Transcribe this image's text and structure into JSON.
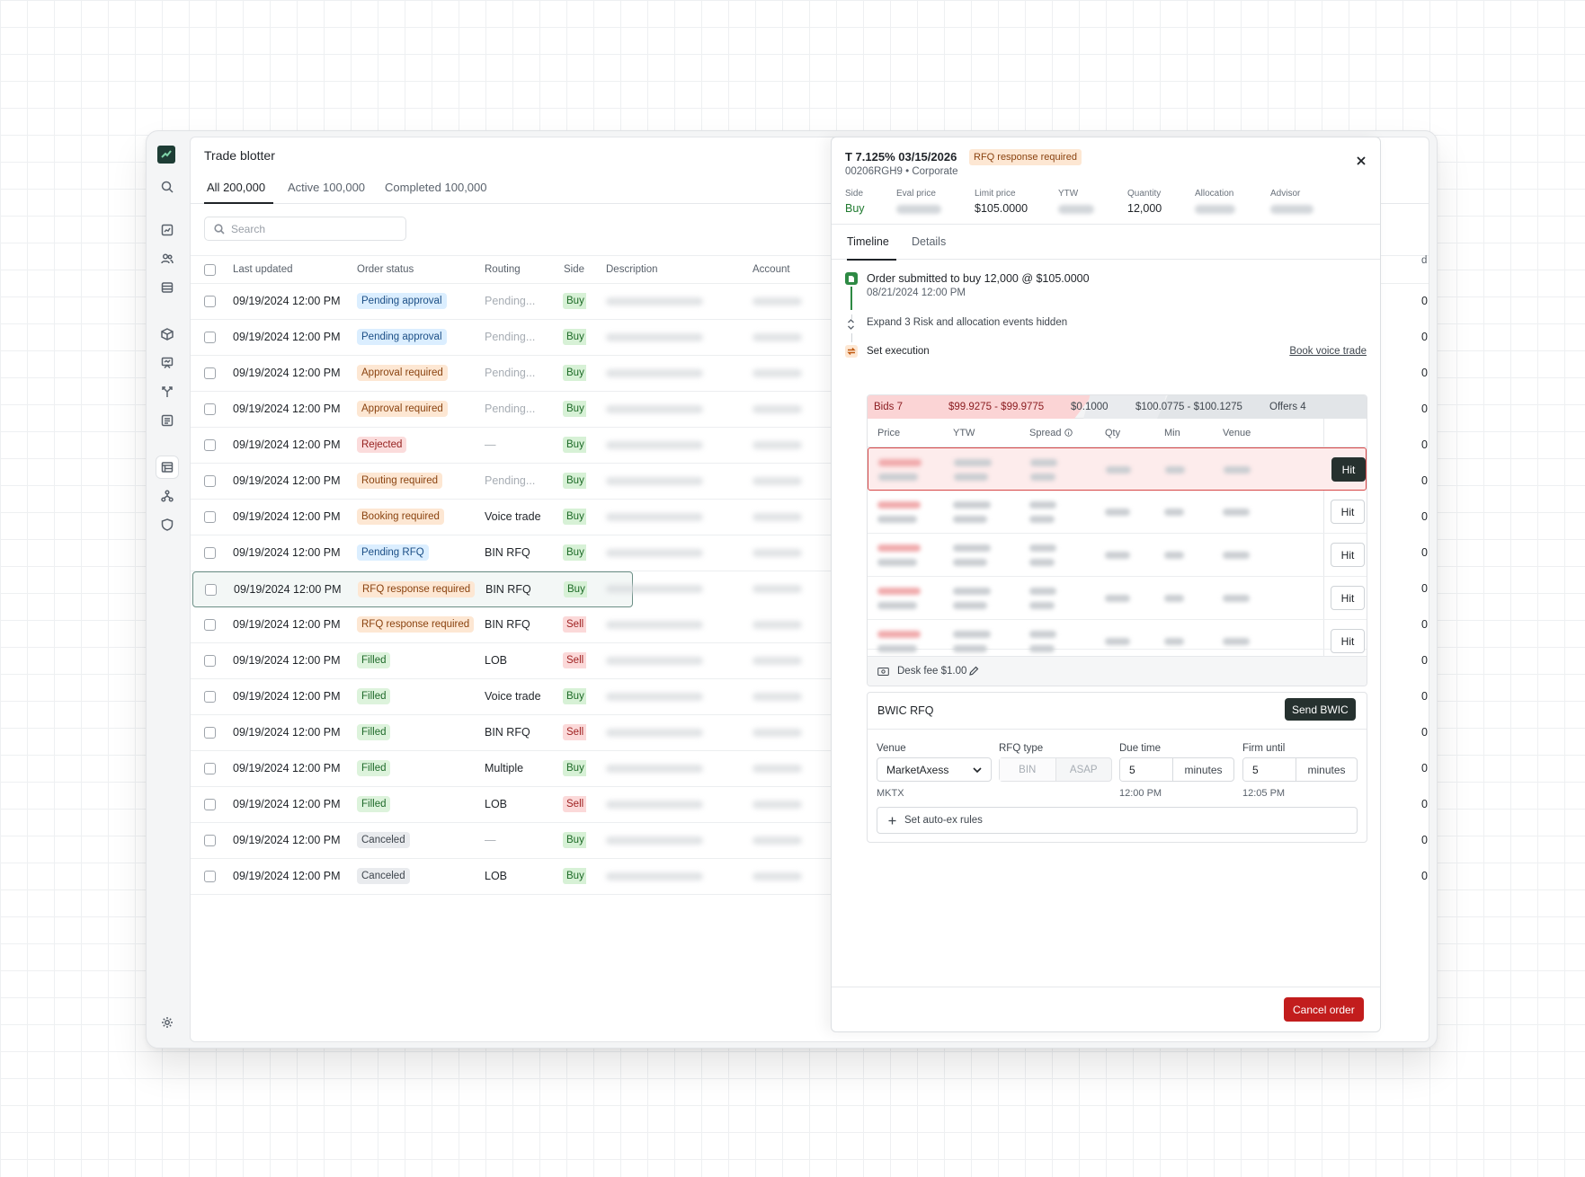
{
  "app": {
    "title": "Trade blotter"
  },
  "tabs": [
    {
      "label": "All",
      "count": "200,000"
    },
    {
      "label": "Active",
      "count": "100,000"
    },
    {
      "label": "Completed",
      "count": "100,000"
    }
  ],
  "search": {
    "placeholder": "Search",
    "value": ""
  },
  "columns": [
    "Last updated",
    "Order status",
    "Routing",
    "Side",
    "Description",
    "Account"
  ],
  "edge_column_fragment": "d",
  "edge_cell_fragment": "0",
  "rows": [
    {
      "updated": "09/19/2024 12:00 PM",
      "status": "Pending approval",
      "status_color": "blue",
      "routing": "Pending...",
      "routing_muted": true,
      "side": "Buy"
    },
    {
      "updated": "09/19/2024 12:00 PM",
      "status": "Pending approval",
      "status_color": "blue",
      "routing": "Pending...",
      "routing_muted": true,
      "side": "Buy"
    },
    {
      "updated": "09/19/2024 12:00 PM",
      "status": "Approval required",
      "status_color": "orange",
      "routing": "Pending...",
      "routing_muted": true,
      "side": "Buy"
    },
    {
      "updated": "09/19/2024 12:00 PM",
      "status": "Approval required",
      "status_color": "orange",
      "routing": "Pending...",
      "routing_muted": true,
      "side": "Buy"
    },
    {
      "updated": "09/19/2024 12:00 PM",
      "status": "Rejected",
      "status_color": "red",
      "routing": "—",
      "routing_muted": true,
      "side": "Buy"
    },
    {
      "updated": "09/19/2024 12:00 PM",
      "status": "Routing required",
      "status_color": "orange",
      "routing": "Pending...",
      "routing_muted": true,
      "side": "Buy"
    },
    {
      "updated": "09/19/2024 12:00 PM",
      "status": "Booking required",
      "status_color": "orange",
      "routing": "Voice trade",
      "routing_muted": false,
      "side": "Buy"
    },
    {
      "updated": "09/19/2024 12:00 PM",
      "status": "Pending RFQ",
      "status_color": "blue",
      "routing": "BIN RFQ",
      "routing_muted": false,
      "side": "Buy"
    },
    {
      "updated": "09/19/2024 12:00 PM",
      "status": "RFQ response required",
      "status_color": "orange",
      "routing": "BIN RFQ",
      "routing_muted": false,
      "side": "Buy",
      "selected": true
    },
    {
      "updated": "09/19/2024 12:00 PM",
      "status": "RFQ response required",
      "status_color": "orange",
      "routing": "BIN RFQ",
      "routing_muted": false,
      "side": "Sell"
    },
    {
      "updated": "09/19/2024 12:00 PM",
      "status": "Filled",
      "status_color": "green",
      "routing": "LOB",
      "routing_muted": false,
      "side": "Sell"
    },
    {
      "updated": "09/19/2024 12:00 PM",
      "status": "Filled",
      "status_color": "green",
      "routing": "Voice trade",
      "routing_muted": false,
      "side": "Buy"
    },
    {
      "updated": "09/19/2024 12:00 PM",
      "status": "Filled",
      "status_color": "green",
      "routing": "BIN RFQ",
      "routing_muted": false,
      "side": "Sell"
    },
    {
      "updated": "09/19/2024 12:00 PM",
      "status": "Filled",
      "status_color": "green",
      "routing": "Multiple",
      "routing_muted": false,
      "side": "Buy"
    },
    {
      "updated": "09/19/2024 12:00 PM",
      "status": "Filled",
      "status_color": "green",
      "routing": "LOB",
      "routing_muted": false,
      "side": "Sell"
    },
    {
      "updated": "09/19/2024 12:00 PM",
      "status": "Canceled",
      "status_color": "gray",
      "routing": "—",
      "routing_muted": true,
      "side": "Buy"
    },
    {
      "updated": "09/19/2024 12:00 PM",
      "status": "Canceled",
      "status_color": "gray",
      "routing": "LOB",
      "routing_muted": false,
      "side": "Buy"
    }
  ],
  "detail": {
    "title": "T 7.125% 03/15/2026",
    "status": "RFQ response required",
    "subtitle": "00206RGH9 • Corporate",
    "meta": {
      "side_label": "Side",
      "side_value": "Buy",
      "eval_label": "Eval price",
      "limit_label": "Limit price",
      "limit_value": "$105.0000",
      "ytw_label": "YTW",
      "qty_label": "Quantity",
      "qty_value": "12,000",
      "alloc_label": "Allocation",
      "advisor_label": "Advisor"
    },
    "tabs": [
      "Timeline",
      "Details"
    ],
    "timeline": {
      "submitted": "Order submitted to buy 12,000 @ $105.0000",
      "submitted_time": "08/21/2024 12:00 PM",
      "expand": "Expand 3 Risk and allocation events hidden",
      "set_execution": "Set execution",
      "book_voice": "Book voice trade"
    },
    "orderbook": {
      "bids_label": "Bids 7",
      "bids_range": "$99.9275 - $99.9775",
      "spread": "$0.1000",
      "offers_range": "$100.0775 - $100.1275",
      "offers_label": "Offers 4",
      "columns": [
        "Price",
        "YTW",
        "Spread",
        "Qty",
        "Min",
        "Venue"
      ],
      "hit_label": "Hit",
      "desk_fee": "Desk fee $1.00"
    },
    "bwic": {
      "title": "BWIC RFQ",
      "send": "Send BWIC",
      "venue_label": "Venue",
      "venue_value": "MarketAxess",
      "venue_code": "MKTX",
      "rfq_type_label": "RFQ type",
      "rfq_options": [
        "BIN",
        "ASAP"
      ],
      "due_label": "Due time",
      "due_value": "5",
      "due_unit": "minutes",
      "due_time": "12:00 PM",
      "firm_label": "Firm until",
      "firm_value": "5",
      "firm_unit": "minutes",
      "firm_time": "12:05 PM",
      "auto_ex": "Set auto-ex rules"
    },
    "cancel": "Cancel order"
  },
  "colors": {
    "brand": "#1e3d35",
    "accent_red": "#c21d1d",
    "buy_green": "#1f7a2f"
  }
}
